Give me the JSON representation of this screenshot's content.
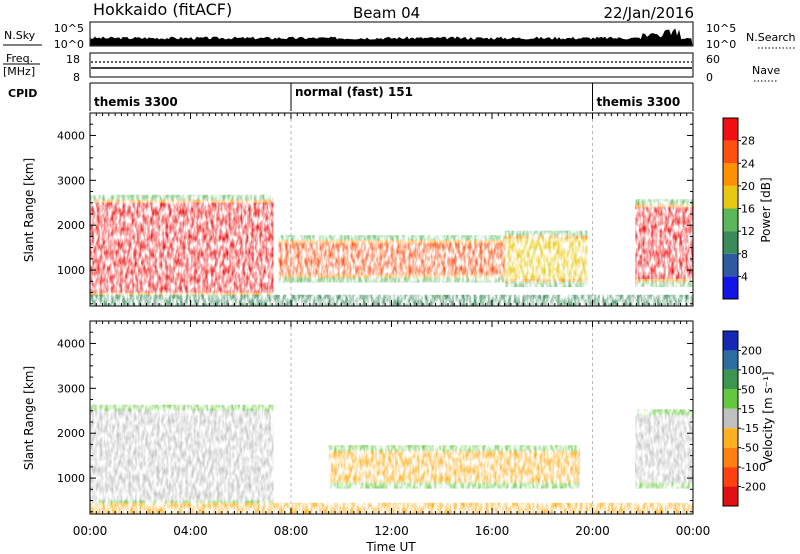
{
  "header": {
    "station": "Hokkaido (fitACF)",
    "beam": "Beam 04",
    "date": "22/Jan/2016"
  },
  "nsky": {
    "label": "N.Sky",
    "tick_top": "10^5",
    "tick_bottom": "10^0",
    "right_label": "N.Search"
  },
  "freq": {
    "label_line1": "Freq.",
    "label_line2": "[MHz]",
    "tick_top": "18",
    "tick_bottom": "8",
    "right_tick_top": "60",
    "right_tick_bottom": "0",
    "right_label": "Nave"
  },
  "cpid": {
    "label": "CPID",
    "segments": [
      {
        "name": "themis 3300",
        "start": 0,
        "end": 8
      },
      {
        "name": "normal (fast) 151",
        "start": 8,
        "end": 20
      },
      {
        "name": "themis 3300",
        "start": 20,
        "end": 24
      }
    ]
  },
  "chart_data": [
    {
      "type": "heatmap",
      "name": "power",
      "ylabel": "Slant Range [km]",
      "ylim": [
        200,
        4500
      ],
      "yticks": [
        1000,
        2000,
        3000,
        4000
      ],
      "xlim": [
        0,
        24
      ],
      "colorbar": {
        "label": "Power [dB]",
        "ticks": [
          4,
          8,
          12,
          16,
          20,
          24,
          28
        ],
        "colors": [
          "#1414e6",
          "#2d5aa0",
          "#3a8a5a",
          "#5ab85a",
          "#e8c810",
          "#ff9000",
          "#ff5010",
          "#f01010"
        ]
      },
      "echo_regions": [
        {
          "t_start": 0.0,
          "t_end": 7.3,
          "r_low": 500,
          "r_high": 2500,
          "level": 28,
          "desc_code": "r1"
        },
        {
          "t_start": 7.5,
          "t_end": 16.5,
          "r_low": 900,
          "r_high": 1600,
          "level": 24,
          "desc_code": "r2"
        },
        {
          "t_start": 16.5,
          "t_end": 19.8,
          "r_low": 800,
          "r_high": 1700,
          "level": 16,
          "desc_code": "r3"
        },
        {
          "t_start": 21.7,
          "t_end": 24.0,
          "r_low": 800,
          "r_high": 2400,
          "level": 28,
          "desc_code": "r4"
        }
      ]
    },
    {
      "type": "heatmap",
      "name": "velocity",
      "ylabel": "Slant Range [km]",
      "xlabel": "Time UT",
      "ylim": [
        200,
        4500
      ],
      "yticks": [
        1000,
        2000,
        3000,
        4000
      ],
      "xlim": [
        0,
        24
      ],
      "xticks": [
        "00:00",
        "04:00",
        "08:00",
        "12:00",
        "16:00",
        "20:00",
        "00:00"
      ],
      "colorbar": {
        "label": "Velocity [m s⁻¹]",
        "ticks": [
          "200",
          "100",
          "50",
          "15",
          "-15",
          "-50",
          "-100",
          "-200"
        ],
        "colors": [
          "#1428b4",
          "#2d6ea0",
          "#3c9650",
          "#64c83c",
          "#c0c0c0",
          "#ffb020",
          "#ff8010",
          "#ff4010",
          "#e01010"
        ]
      },
      "echo_regions": [
        {
          "t_start": 0.0,
          "t_end": 7.3,
          "r_low": 500,
          "r_high": 2500,
          "velocity": 0
        },
        {
          "t_start": 9.5,
          "t_end": 19.5,
          "r_low": 900,
          "r_high": 1600,
          "velocity": -40
        },
        {
          "t_start": 21.7,
          "t_end": 24.0,
          "r_low": 900,
          "r_high": 2400,
          "velocity": 0
        }
      ]
    }
  ]
}
